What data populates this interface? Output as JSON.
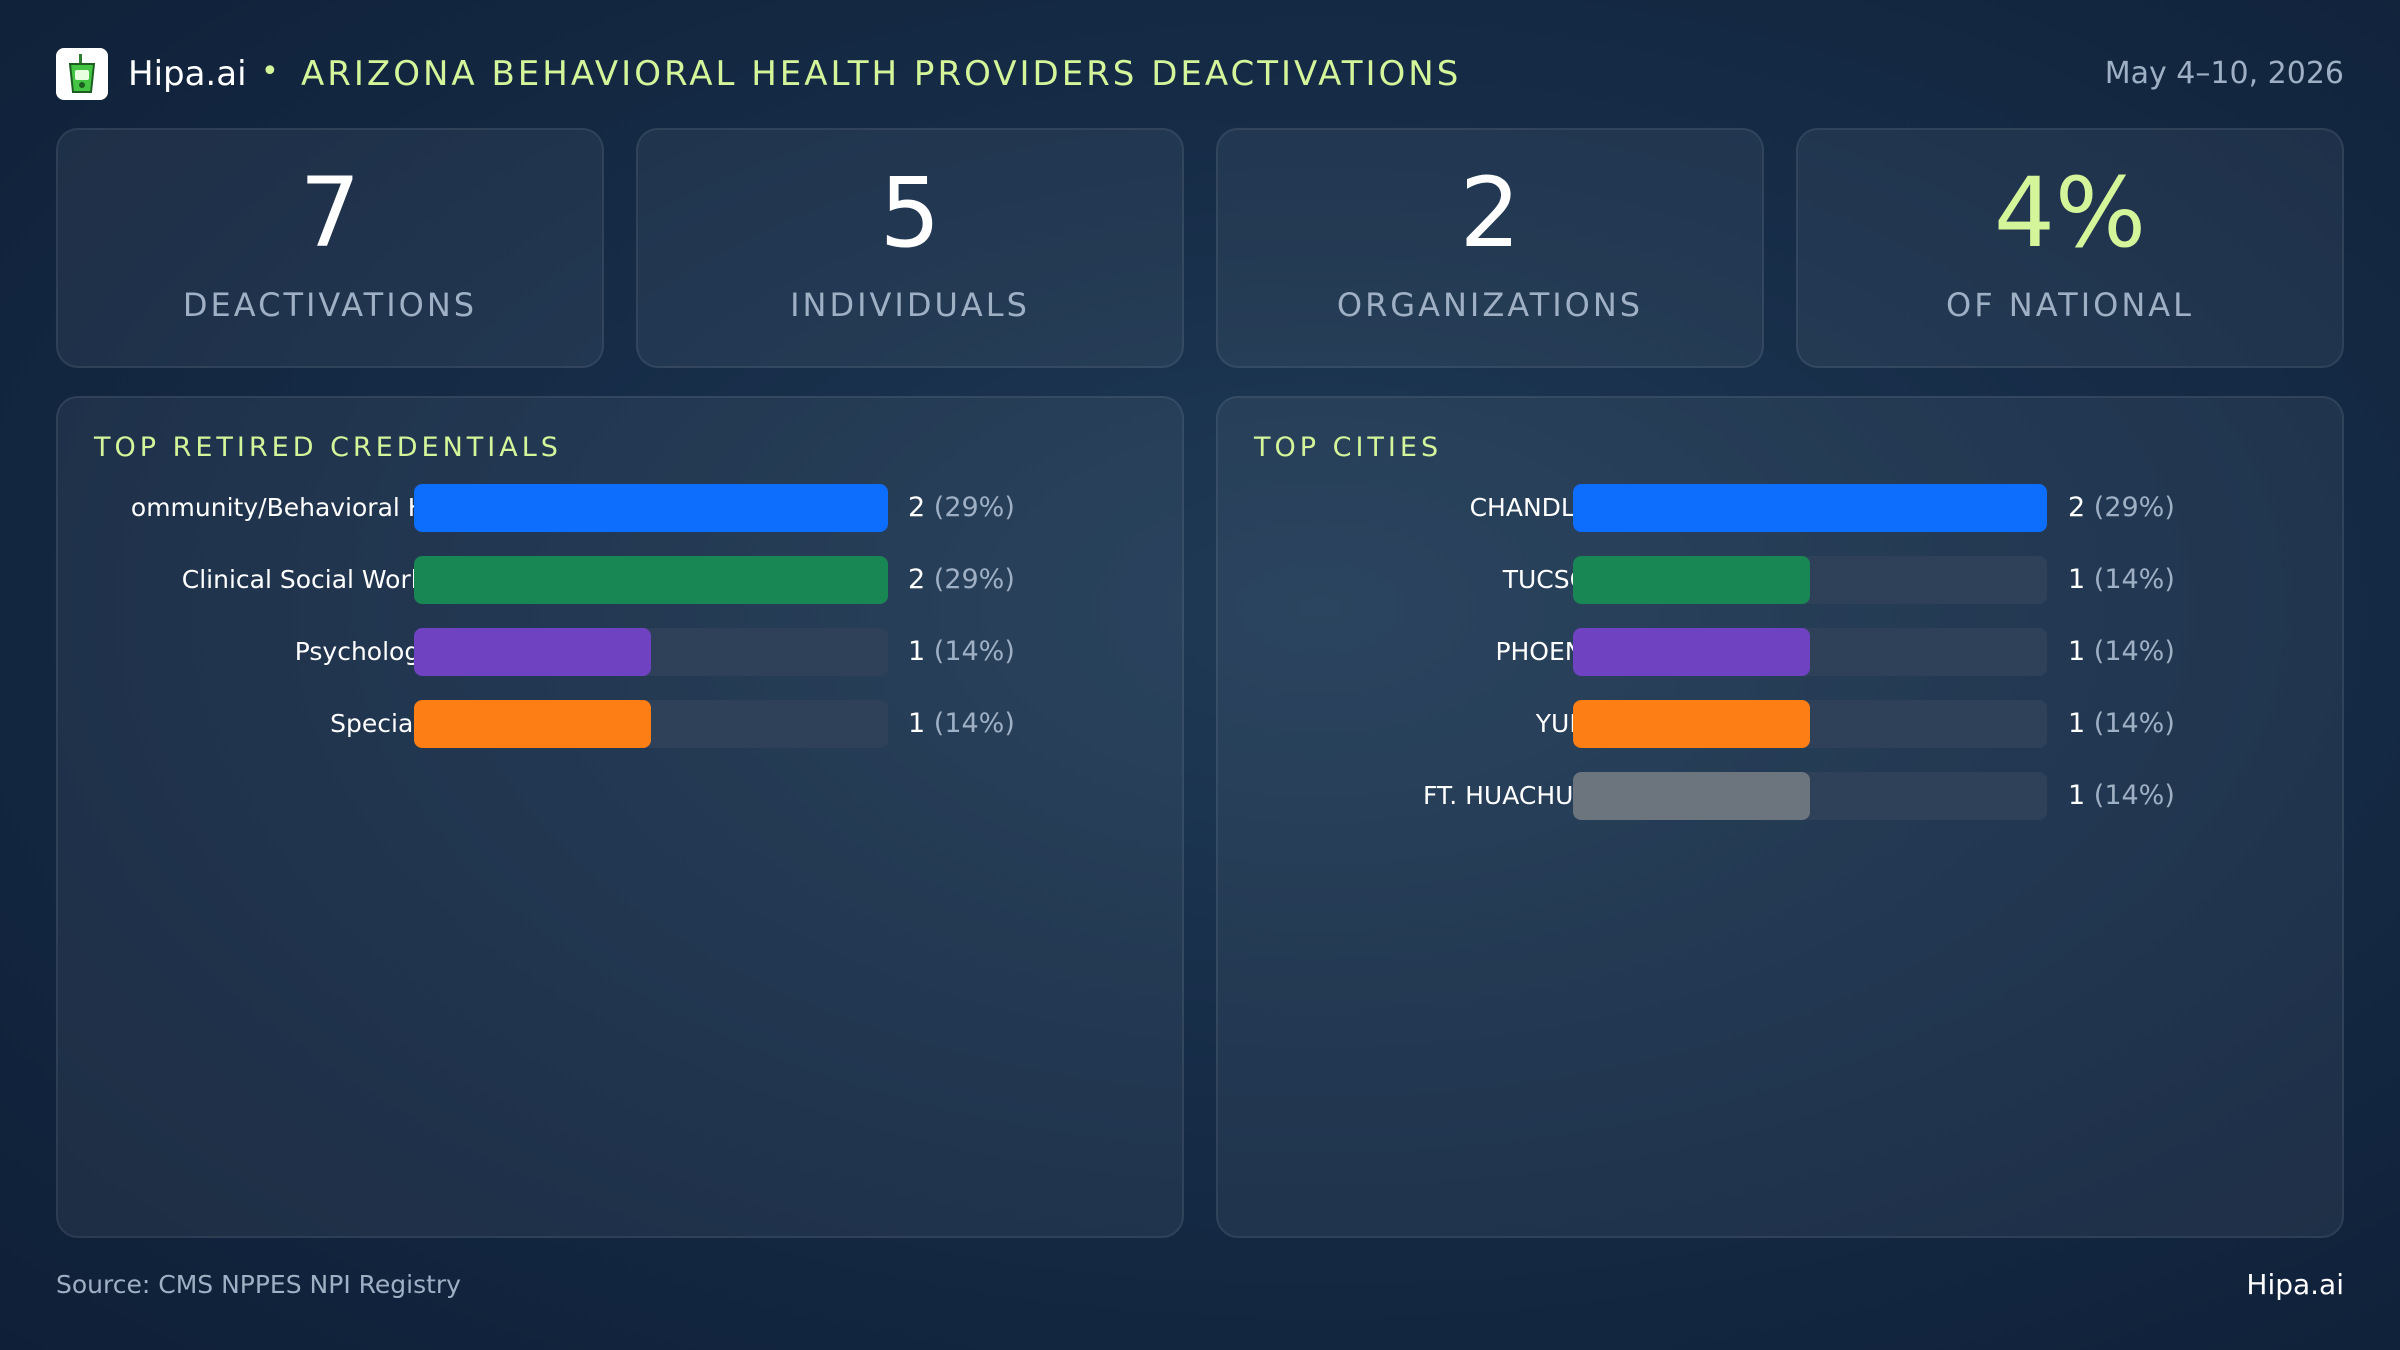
{
  "header": {
    "brand": "Hipa.ai",
    "separator": "•",
    "title": "ARIZONA BEHAVIORAL HEALTH PROVIDERS DEACTIVATIONS",
    "date_range": "May 4–10, 2026"
  },
  "kpis": [
    {
      "value": "7",
      "label": "DEACTIVATIONS"
    },
    {
      "value": "5",
      "label": "INDIVIDUALS"
    },
    {
      "value": "2",
      "label": "ORGANIZATIONS"
    },
    {
      "value": "4%",
      "label": "OF NATIONAL"
    }
  ],
  "colors": {
    "accent": "#d4f59a",
    "blue": "#0d6efd",
    "green": "#198754",
    "purple": "#6f42c1",
    "orange": "#fd7e14",
    "gray": "#6c757d"
  },
  "chart_data": [
    {
      "type": "bar",
      "title": "TOP RETIRED CREDENTIALS",
      "orientation": "horizontal",
      "categories": [
        "ommunity/Behavioral H...",
        "Clinical Social Worker",
        "Psychologist",
        "Specialist"
      ],
      "values": [
        2,
        2,
        1,
        1
      ],
      "value_labels": [
        "2",
        "2",
        "1",
        "1"
      ],
      "percent_labels": [
        "(29%)",
        "(29%)",
        "(14%)",
        "(14%)"
      ],
      "colors": [
        "#0d6efd",
        "#198754",
        "#6f42c1",
        "#fd7e14"
      ],
      "xlim": [
        0,
        2
      ]
    },
    {
      "type": "bar",
      "title": "TOP CITIES",
      "orientation": "horizontal",
      "categories": [
        "CHANDLER",
        "TUCSON",
        "PHOENIX",
        "YUMA",
        "FT. HUACHUCA"
      ],
      "values": [
        2,
        1,
        1,
        1,
        1
      ],
      "value_labels": [
        "2",
        "1",
        "1",
        "1",
        "1"
      ],
      "percent_labels": [
        "(29%)",
        "(14%)",
        "(14%)",
        "(14%)",
        "(14%)"
      ],
      "colors": [
        "#0d6efd",
        "#198754",
        "#6f42c1",
        "#fd7e14",
        "#6c757d"
      ],
      "xlim": [
        0,
        2
      ]
    }
  ],
  "footer": {
    "source": "Source: CMS NPPES NPI Registry",
    "brand": "Hipa.ai"
  }
}
